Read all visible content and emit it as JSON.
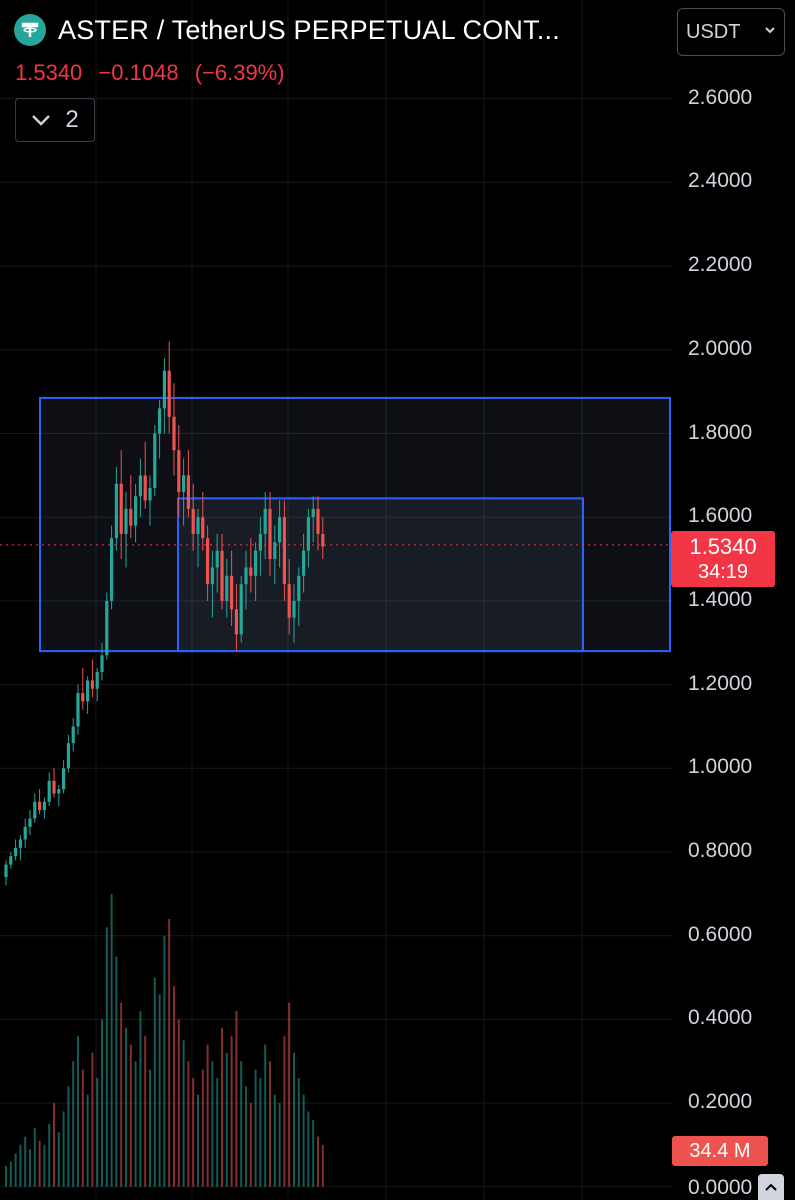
{
  "header": {
    "symbol_title": "ASTER / TetherUS PERPETUAL CONT...",
    "last_price": "1.5340",
    "change": "−0.1048",
    "change_pct": "(−6.39%)",
    "legend_count": "2",
    "currency": "USDT",
    "logo_icon": "tether-logo-icon"
  },
  "price_tag": {
    "price": "1.5340",
    "countdown": "34:19"
  },
  "volume_tag": {
    "value": "34.4 M"
  },
  "axis": {
    "ticks": [
      "2.6000",
      "2.4000",
      "2.2000",
      "2.0000",
      "1.8000",
      "1.6000",
      "1.4000",
      "1.2000",
      "1.0000",
      "0.8000",
      "0.6000",
      "0.4000",
      "0.2000"
    ],
    "zero": "0.0000"
  },
  "colors": {
    "up": "#26a69a",
    "down": "#ef5350",
    "box": "#2962ff",
    "price_line": "#f23645"
  },
  "chart_data": {
    "type": "candlestick",
    "y_range": [
      0,
      2.65
    ],
    "current_price": 1.534,
    "rectangles": [
      {
        "from_bar": 0,
        "to_bar": "right-edge",
        "top": 1.885,
        "bottom": 1.28
      },
      {
        "from_bar": 34,
        "to_bar": 110,
        "top": 1.645,
        "bottom": 1.28
      }
    ],
    "candles": [
      [
        0.74,
        0.78,
        0.72,
        0.77
      ],
      [
        0.77,
        0.8,
        0.76,
        0.79
      ],
      [
        0.79,
        0.83,
        0.78,
        0.81
      ],
      [
        0.81,
        0.84,
        0.78,
        0.83
      ],
      [
        0.83,
        0.88,
        0.81,
        0.86
      ],
      [
        0.86,
        0.9,
        0.84,
        0.88
      ],
      [
        0.88,
        0.94,
        0.87,
        0.92
      ],
      [
        0.92,
        0.95,
        0.89,
        0.9
      ],
      [
        0.9,
        0.93,
        0.88,
        0.92
      ],
      [
        0.92,
        0.99,
        0.91,
        0.97
      ],
      [
        0.97,
        1.0,
        0.93,
        0.94
      ],
      [
        0.94,
        0.96,
        0.91,
        0.95
      ],
      [
        0.95,
        1.02,
        0.94,
        1.0
      ],
      [
        1.0,
        1.08,
        0.99,
        1.06
      ],
      [
        1.06,
        1.12,
        1.04,
        1.1
      ],
      [
        1.1,
        1.2,
        1.08,
        1.18
      ],
      [
        1.18,
        1.24,
        1.14,
        1.16
      ],
      [
        1.16,
        1.22,
        1.13,
        1.21
      ],
      [
        1.21,
        1.26,
        1.17,
        1.19
      ],
      [
        1.19,
        1.24,
        1.16,
        1.23
      ],
      [
        1.23,
        1.3,
        1.21,
        1.27
      ],
      [
        1.27,
        1.42,
        1.26,
        1.4
      ],
      [
        1.4,
        1.58,
        1.38,
        1.55
      ],
      [
        1.55,
        1.72,
        1.52,
        1.68
      ],
      [
        1.68,
        1.76,
        1.5,
        1.56
      ],
      [
        1.56,
        1.66,
        1.48,
        1.62
      ],
      [
        1.62,
        1.7,
        1.55,
        1.58
      ],
      [
        1.58,
        1.68,
        1.54,
        1.65
      ],
      [
        1.65,
        1.74,
        1.6,
        1.7
      ],
      [
        1.7,
        1.78,
        1.62,
        1.64
      ],
      [
        1.64,
        1.7,
        1.58,
        1.67
      ],
      [
        1.67,
        1.82,
        1.65,
        1.8
      ],
      [
        1.8,
        1.88,
        1.74,
        1.86
      ],
      [
        1.86,
        1.98,
        1.8,
        1.95
      ],
      [
        1.95,
        2.02,
        1.8,
        1.84
      ],
      [
        1.84,
        1.92,
        1.7,
        1.76
      ],
      [
        1.76,
        1.82,
        1.6,
        1.66
      ],
      [
        1.66,
        1.74,
        1.58,
        1.7
      ],
      [
        1.7,
        1.76,
        1.6,
        1.62
      ],
      [
        1.62,
        1.68,
        1.52,
        1.56
      ],
      [
        1.56,
        1.62,
        1.48,
        1.6
      ],
      [
        1.6,
        1.66,
        1.52,
        1.55
      ],
      [
        1.55,
        1.58,
        1.4,
        1.44
      ],
      [
        1.44,
        1.52,
        1.36,
        1.48
      ],
      [
        1.48,
        1.56,
        1.42,
        1.52
      ],
      [
        1.52,
        1.56,
        1.38,
        1.4
      ],
      [
        1.4,
        1.5,
        1.36,
        1.46
      ],
      [
        1.46,
        1.52,
        1.34,
        1.38
      ],
      [
        1.38,
        1.44,
        1.28,
        1.32
      ],
      [
        1.32,
        1.46,
        1.3,
        1.44
      ],
      [
        1.44,
        1.52,
        1.38,
        1.48
      ],
      [
        1.48,
        1.55,
        1.42,
        1.46
      ],
      [
        1.46,
        1.54,
        1.4,
        1.52
      ],
      [
        1.52,
        1.6,
        1.46,
        1.56
      ],
      [
        1.56,
        1.66,
        1.5,
        1.62
      ],
      [
        1.62,
        1.66,
        1.46,
        1.5
      ],
      [
        1.5,
        1.58,
        1.44,
        1.54
      ],
      [
        1.54,
        1.64,
        1.48,
        1.6
      ],
      [
        1.6,
        1.64,
        1.4,
        1.44
      ],
      [
        1.44,
        1.5,
        1.32,
        1.36
      ],
      [
        1.36,
        1.44,
        1.3,
        1.4
      ],
      [
        1.4,
        1.48,
        1.34,
        1.46
      ],
      [
        1.46,
        1.56,
        1.42,
        1.52
      ],
      [
        1.52,
        1.62,
        1.48,
        1.6
      ],
      [
        1.6,
        1.65,
        1.54,
        1.62
      ],
      [
        1.62,
        1.65,
        1.52,
        1.56
      ],
      [
        1.56,
        1.6,
        1.5,
        1.53
      ]
    ],
    "volume": [
      0.05,
      0.06,
      0.08,
      0.1,
      0.12,
      0.09,
      0.14,
      0.11,
      0.1,
      0.15,
      0.2,
      0.13,
      0.18,
      0.24,
      0.3,
      0.36,
      0.28,
      0.22,
      0.32,
      0.26,
      0.4,
      0.62,
      0.7,
      0.55,
      0.44,
      0.38,
      0.34,
      0.3,
      0.42,
      0.36,
      0.28,
      0.5,
      0.46,
      0.6,
      0.64,
      0.48,
      0.4,
      0.35,
      0.3,
      0.26,
      0.22,
      0.28,
      0.34,
      0.3,
      0.26,
      0.38,
      0.32,
      0.36,
      0.42,
      0.3,
      0.24,
      0.2,
      0.28,
      0.26,
      0.34,
      0.3,
      0.22,
      0.2,
      0.36,
      0.44,
      0.32,
      0.26,
      0.22,
      0.18,
      0.16,
      0.12,
      0.1
    ]
  }
}
